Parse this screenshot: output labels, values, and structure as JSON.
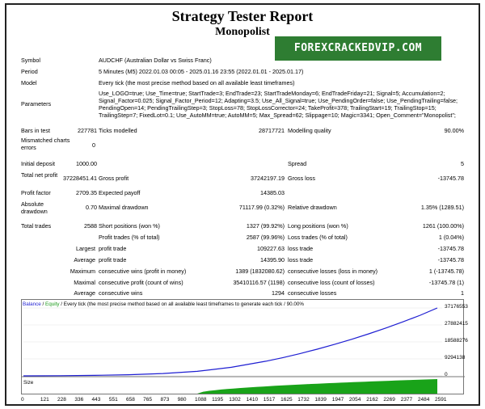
{
  "header": {
    "title": "Strategy Tester Report",
    "subtitle": "Monopolist",
    "watermark": "FOREXCRACKEDVIP.COM"
  },
  "info": {
    "symbol_label": "Symbol",
    "symbol_value": "AUDCHF (Australian Dollar vs Swiss Franc)",
    "period_label": "Period",
    "period_value": "5 Minutes (M5) 2022.01.03 00:05 - 2025.01.16 23:55 (2022.01.01 - 2025.01.17)",
    "model_label": "Model",
    "model_value": "Every tick (the most precise method based on all available least timeframes)",
    "parameters_label": "Parameters",
    "parameters_value": "Use_LOGO=true; Use_Time=true; StartTrade=3; EndTrade=23; StartTradeMonday=6; EndTradeFriday=21; Signal=5; Accumulation=2; Signal_Factor=0.025; Signal_Factor_Period=12; Adapting=3.5; Use_All_Signal=true; Use_PendingOrder=false; Use_PendingTrailing=false; PendingOpen=14; PendingTrailingStep=3; StopLoss=78; StopLossCorrector=24; TakeProfit=378; TrailingStart=19; TrailingStop=15; TrailingStep=7; FixedLot=0.1; Use_AutoMM=true; AutoMM=5; Max_Spread=62; Slippage=10; Magic=3341; Open_Comment=\"Monopolist\";"
  },
  "stats": {
    "bars_label": "Bars in test",
    "bars_value": "227781",
    "ticks_label": "Ticks modelled",
    "ticks_value": "28717721",
    "quality_label": "Modelling quality",
    "quality_value": "90.00%",
    "mismatch_label": "Mismatched charts errors",
    "mismatch_value": "0",
    "deposit_label": "Initial deposit",
    "deposit_value": "1000.00",
    "spread_label": "Spread",
    "spread_value": "5",
    "netprofit_label": "Total net profit",
    "netprofit_value": "37228451.41",
    "grossprofit_label": "Gross profit",
    "grossprofit_value": "37242197.19",
    "grossloss_label": "Gross loss",
    "grossloss_value": "-13745.78",
    "pf_label": "Profit factor",
    "pf_value": "2709.35",
    "payoff_label": "Expected payoff",
    "payoff_value": "14385.03",
    "absdd_label": "Absolute drawdown",
    "absdd_value": "0.70",
    "maxdd_label": "Maximal drawdown",
    "maxdd_value": "71117.99 (0.32%)",
    "reldd_label": "Relative drawdown",
    "reldd_value": "1.35% (1289.51)",
    "trades_label": "Total trades",
    "trades_value": "2588",
    "short_label": "Short positions (won %)",
    "short_value": "1327 (99.92%)",
    "long_label": "Long positions (won %)",
    "long_value": "1261 (100.00%)",
    "ptrades_label": "Profit trades (% of total)",
    "ptrades_value": "2587 (99.96%)",
    "ltrades_label": "Loss trades (% of total)",
    "ltrades_value": "1 (0.04%)",
    "largest_label": "Largest",
    "lpt_label": "profit trade",
    "lpt_value": "109227.63",
    "llt_label": "loss trade",
    "llt_value": "-13745.78",
    "average_label": "Average",
    "apt_label": "profit trade",
    "apt_value": "14395.90",
    "alt_label": "loss trade",
    "alt_value": "-13745.78",
    "maximum_label": "Maximum",
    "mcw_label": "consecutive wins (profit in money)",
    "mcw_value": "1389 (1832080.62)",
    "mcl_label": "consecutive losses (loss in money)",
    "mcl_value": "1 (-13745.78)",
    "maximal_label": "Maximal",
    "mcp_label": "consecutive profit (count of wins)",
    "mcp_value": "35410116.57 (1198)",
    "mcloss_label": "consecutive loss (count of losses)",
    "mcloss_value": "-13745.78 (1)",
    "average2_label": "Average",
    "acw_label": "consecutive wins",
    "acw_value": "1294",
    "acl_label": "consecutive losses",
    "acl_value": "1"
  },
  "chart_legend": {
    "balance": "Balance",
    "equity": "Equity",
    "rest": "Every tick (the most precise method based on all available least timeframes to generate each tick",
    "quality": "90.00%",
    "size_label": "Size",
    "balance_color": "#1e1ed2",
    "equity_color": "#1a9a1a",
    "size_color": "#19a319"
  },
  "chart_data": {
    "type": "line",
    "ylim": [
      0,
      37176553
    ],
    "yticks": [
      "37176553",
      "27882415",
      "18588276",
      "9294138",
      "0"
    ],
    "xticks": [
      "0",
      "121",
      "228",
      "336",
      "443",
      "551",
      "658",
      "765",
      "873",
      "980",
      "1088",
      "1195",
      "1302",
      "1410",
      "1517",
      "1625",
      "1732",
      "1839",
      "1947",
      "2054",
      "2162",
      "2269",
      "2377",
      "2484",
      "2591"
    ],
    "series": [
      {
        "name": "Balance",
        "x": [
          0,
          228,
          443,
          658,
          873,
          1088,
          1302,
          1517,
          1625,
          1732,
          1839,
          1947,
          2054,
          2162,
          2269,
          2377,
          2484,
          2591
        ],
        "values": [
          1000,
          80000,
          250000,
          600000,
          1300000,
          2500000,
          4700000,
          8000000,
          10000000,
          12200000,
          14600000,
          17200000,
          20000000,
          23000000,
          26200000,
          29600000,
          33200000,
          37176553
        ]
      }
    ]
  }
}
